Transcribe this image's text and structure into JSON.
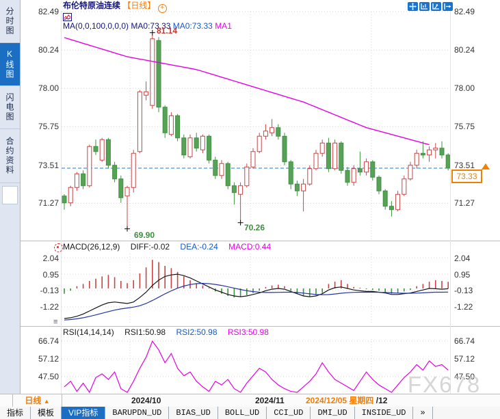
{
  "header": {
    "instrument": "布伦特原油连续",
    "period_tag": "【日线】",
    "add_icon_glyph": "+",
    "ma_settings": "MA(0,0,100,0,0,0)",
    "ma0_a": "MA0:73.33",
    "ma0_b": "MA0:73.33",
    "ma1": "MA1"
  },
  "sidebar": {
    "items": [
      {
        "label": "分时图",
        "active": false
      },
      {
        "label": "K线图",
        "active": true
      },
      {
        "label": "闪电图",
        "active": false
      },
      {
        "label": "合约资料",
        "active": false
      }
    ]
  },
  "price_axis": {
    "left": [
      "82.49",
      "80.24",
      "78.00",
      "75.75",
      "73.51",
      "71.27"
    ],
    "right": [
      "82.49",
      "80.24",
      "78.00",
      "75.75",
      "73.51",
      "71.27"
    ],
    "current_price": "73.33"
  },
  "annotations": {
    "high": "81.14",
    "low1": "69.90",
    "low2": "70.26"
  },
  "macd": {
    "title": "MACD(26,12,9)",
    "diff_label": "DIFF:-0.02",
    "dea_label": "DEA:-0.24",
    "macd_label": "MACD:0.44",
    "axis": [
      "2.04",
      "0.95",
      "-0.13",
      "-1.22"
    ]
  },
  "rsi": {
    "title": "RSI(14,14,14)",
    "rsi1_label": "RSI1:50.98",
    "rsi2_label": "RSI2:50.98",
    "rsi3_label": "RSI3:50.98",
    "axis": [
      "66.74",
      "57.12",
      "47.50"
    ]
  },
  "timeline": {
    "period_button": "日线",
    "period_arrow": "▲",
    "labels": [
      "2024/10",
      "2024/11"
    ],
    "current_date": "2024/12/05 星期四",
    "month_suffix": "/12"
  },
  "toolbar": {
    "tabs": [
      "指标",
      "模板",
      "VIP指标",
      "BARUPDN_UD",
      "BIAS_UD",
      "BOLL_UD",
      "CCI_UD",
      "DMI_UD",
      "INSIDE_UD",
      "»"
    ]
  },
  "watermark": "FX678",
  "colors": {
    "up": "#c84444",
    "down_stroke": "#3f9140",
    "down_fill": "#57a257",
    "ma100": "#e600e6",
    "diff": "#151515",
    "dea": "#2233aa",
    "rsi_line": "#e600e6",
    "last_price_line": "#1f7ad0",
    "accent_orange": "#f57c00",
    "accent_blue": "#1b74cc",
    "grid": "#ddd3d3",
    "cross_marker": "#000000"
  },
  "chart_data": [
    {
      "type": "candlestick",
      "panel": "price",
      "y_ticks": [
        82.49,
        80.24,
        78.0,
        75.75,
        73.51,
        71.27
      ],
      "last_price": 73.33,
      "month_start_indices": [
        10.43,
        29.57,
        48.8
      ],
      "high_marker": {
        "index": 14,
        "value": 81.14
      },
      "low_marker1": {
        "index": 10,
        "value": 69.9
      },
      "low_marker2": {
        "index": 28,
        "value": 70.26
      },
      "ma100_anchors": [
        [
          0,
          80.97
        ],
        [
          10,
          79.85
        ],
        [
          21,
          79.1
        ],
        [
          38,
          77.2
        ],
        [
          48,
          75.7
        ],
        [
          58,
          74.7
        ]
      ],
      "ohlc": [
        [
          71.7,
          71.8,
          70.9,
          71.3
        ],
        [
          71.3,
          72.3,
          71.1,
          72.2
        ],
        [
          72.2,
          73.1,
          72.0,
          73.0
        ],
        [
          73.0,
          73.2,
          72.1,
          72.3
        ],
        [
          72.3,
          74.7,
          72.2,
          74.6
        ],
        [
          74.6,
          75.0,
          74.1,
          74.3
        ],
        [
          73.8,
          75.1,
          73.7,
          75.0
        ],
        [
          75.0,
          75.1,
          73.3,
          73.5
        ],
        [
          73.5,
          73.7,
          72.5,
          72.7
        ],
        [
          72.7,
          72.9,
          71.3,
          71.6
        ],
        [
          71.7,
          72.3,
          69.9,
          72.2
        ],
        [
          72.2,
          74.4,
          71.9,
          74.2
        ],
        [
          74.3,
          77.9,
          74.2,
          77.8
        ],
        [
          77.6,
          78.4,
          77.3,
          77.8
        ],
        [
          77.0,
          81.14,
          76.8,
          80.9
        ],
        [
          80.8,
          81.0,
          76.6,
          76.9
        ],
        [
          76.9,
          77.0,
          75.1,
          75.4
        ],
        [
          75.3,
          76.6,
          75.2,
          76.4
        ],
        [
          76.4,
          76.5,
          74.9,
          75.1
        ],
        [
          75.1,
          75.3,
          73.9,
          74.1
        ],
        [
          74.0,
          75.3,
          73.9,
          75.1
        ],
        [
          75.1,
          75.4,
          74.3,
          74.5
        ],
        [
          74.4,
          75.3,
          74.2,
          75.2
        ],
        [
          75.2,
          75.3,
          73.6,
          73.8
        ],
        [
          73.8,
          74.0,
          72.7,
          72.9
        ],
        [
          72.9,
          73.8,
          72.7,
          73.6
        ],
        [
          73.6,
          73.7,
          72.1,
          72.3
        ],
        [
          72.3,
          72.5,
          71.2,
          71.9
        ],
        [
          71.8,
          72.5,
          70.26,
          72.3
        ],
        [
          72.3,
          73.6,
          72.2,
          73.4
        ],
        [
          73.4,
          74.5,
          73.3,
          74.3
        ],
        [
          74.3,
          75.4,
          74.2,
          75.2
        ],
        [
          75.2,
          75.9,
          75.0,
          75.5
        ],
        [
          75.4,
          76.2,
          75.2,
          75.7
        ],
        [
          75.7,
          75.9,
          75.0,
          75.2
        ],
        [
          75.2,
          75.4,
          73.5,
          73.7
        ],
        [
          73.7,
          73.8,
          72.1,
          72.4
        ],
        [
          72.4,
          72.6,
          71.7,
          72.0
        ],
        [
          72.0,
          72.7,
          70.8,
          72.4
        ],
        [
          72.4,
          73.5,
          72.3,
          73.3
        ],
        [
          73.3,
          74.4,
          73.2,
          74.2
        ],
        [
          74.2,
          75.0,
          74.0,
          74.8
        ],
        [
          74.8,
          75.1,
          73.1,
          73.3
        ],
        [
          73.3,
          75.0,
          73.2,
          74.8
        ],
        [
          74.8,
          74.9,
          73.0,
          73.2
        ],
        [
          73.2,
          73.4,
          72.3,
          72.5
        ],
        [
          72.5,
          73.5,
          72.3,
          73.3
        ],
        [
          73.3,
          74.3,
          72.9,
          73.1
        ],
        [
          73.1,
          73.9,
          72.9,
          73.7
        ],
        [
          73.7,
          73.8,
          72.6,
          72.8
        ],
        [
          72.8,
          72.9,
          71.8,
          72.0
        ],
        [
          72.0,
          72.1,
          70.9,
          71.1
        ],
        [
          71.1,
          71.4,
          70.5,
          70.9
        ],
        [
          70.9,
          72.0,
          70.8,
          71.8
        ],
        [
          71.8,
          72.9,
          71.7,
          72.7
        ],
        [
          72.7,
          73.7,
          72.6,
          73.5
        ],
        [
          73.5,
          74.4,
          73.3,
          74.2
        ],
        [
          74.2,
          74.9,
          73.9,
          74.1
        ],
        [
          74.1,
          74.6,
          73.7,
          74.4
        ],
        [
          74.4,
          74.8,
          73.9,
          74.5
        ],
        [
          74.5,
          74.9,
          73.9,
          74.1
        ],
        [
          74.1,
          74.2,
          73.2,
          73.33
        ]
      ]
    },
    {
      "type": "macd",
      "panel": "macd",
      "y_ticks": [
        2.04,
        0.95,
        -0.13,
        -1.22
      ],
      "histogram": [
        -0.35,
        -0.15,
        0.15,
        0.3,
        0.5,
        0.65,
        0.8,
        0.9,
        0.75,
        0.5,
        0.35,
        0.55,
        1.0,
        1.4,
        1.9,
        1.75,
        1.5,
        1.35,
        1.1,
        0.8,
        0.55,
        0.35,
        0.2,
        0.05,
        -0.2,
        -0.35,
        -0.5,
        -0.6,
        -0.55,
        -0.45,
        -0.3,
        -0.15,
        0.1,
        0.2,
        0.25,
        0.15,
        -0.15,
        -0.35,
        -0.5,
        -0.55,
        -0.45,
        -0.3,
        0.3,
        0.45,
        0.55,
        0.3,
        0.1,
        0.05,
        -0.05,
        -0.1,
        -0.15,
        -0.25,
        -0.35,
        -0.3,
        -0.2,
        -0.1,
        0.15,
        0.3,
        0.45,
        0.55,
        0.5,
        0.44
      ],
      "diff": [
        -2.0,
        -1.95,
        -1.85,
        -1.7,
        -1.5,
        -1.3,
        -1.1,
        -0.95,
        -0.9,
        -0.95,
        -1.0,
        -0.9,
        -0.6,
        -0.25,
        0.2,
        0.55,
        0.8,
        0.9,
        0.95,
        0.85,
        0.7,
        0.5,
        0.3,
        0.1,
        -0.1,
        -0.25,
        -0.4,
        -0.5,
        -0.55,
        -0.5,
        -0.4,
        -0.3,
        -0.15,
        -0.05,
        0.0,
        -0.05,
        -0.2,
        -0.35,
        -0.5,
        -0.55,
        -0.5,
        -0.35,
        -0.1,
        0.05,
        0.1,
        0.0,
        -0.1,
        -0.15,
        -0.2,
        -0.2,
        -0.25,
        -0.3,
        -0.4,
        -0.4,
        -0.35,
        -0.3,
        -0.2,
        -0.1,
        0.0,
        -0.02,
        -0.05,
        -0.02
      ],
      "dea": [
        -2.1,
        -2.07,
        -2.02,
        -1.95,
        -1.86,
        -1.76,
        -1.65,
        -1.54,
        -1.44,
        -1.36,
        -1.3,
        -1.24,
        -1.15,
        -1.0,
        -0.8,
        -0.58,
        -0.36,
        -0.16,
        0.02,
        0.16,
        0.26,
        0.32,
        0.34,
        0.32,
        0.27,
        0.2,
        0.11,
        0.02,
        -0.07,
        -0.15,
        -0.21,
        -0.25,
        -0.27,
        -0.27,
        -0.26,
        -0.25,
        -0.25,
        -0.27,
        -0.31,
        -0.36,
        -0.4,
        -0.42,
        -0.41,
        -0.37,
        -0.32,
        -0.28,
        -0.26,
        -0.25,
        -0.25,
        -0.25,
        -0.26,
        -0.27,
        -0.29,
        -0.31,
        -0.32,
        -0.32,
        -0.31,
        -0.29,
        -0.27,
        -0.25,
        -0.25,
        -0.24
      ]
    },
    {
      "type": "line",
      "panel": "rsi",
      "y_ticks": [
        66.74,
        57.12,
        47.5
      ],
      "series": [
        {
          "name": "RSI",
          "values": [
            42,
            45,
            39.5,
            44,
            39,
            47,
            49,
            46,
            50,
            41,
            39,
            45,
            52,
            58,
            66.7,
            62,
            55,
            60,
            52,
            48,
            50,
            45,
            42,
            39.5,
            45,
            43,
            46,
            41,
            39,
            44,
            48,
            52,
            50,
            46,
            43,
            41,
            39.5,
            39,
            42,
            45,
            49,
            55,
            50,
            46,
            44,
            42,
            40,
            45,
            50,
            46,
            43,
            41,
            39,
            43,
            47,
            50,
            54,
            51,
            56,
            53,
            54,
            51
          ]
        }
      ]
    }
  ]
}
